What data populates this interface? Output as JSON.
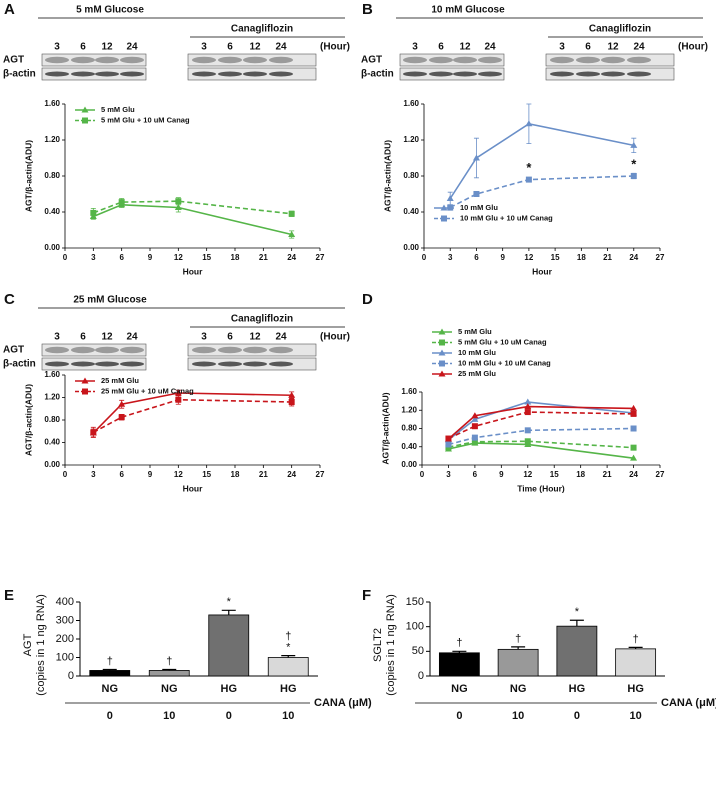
{
  "chart_data": [
    {
      "type": "line",
      "panel": "A",
      "title": "5 mM Glucose",
      "blot": {
        "lanes": [
          "3",
          "6",
          "12",
          "24"
        ],
        "treatment": "Canagliflozin",
        "unit": "(Hour)",
        "rows": [
          "AGT",
          "β-actin"
        ]
      },
      "xlabel": "Hour",
      "ylabel": "AGT/β-actin(ADU)",
      "legend": "upper left",
      "x": [
        3,
        6,
        12,
        24
      ],
      "xlim": [
        0,
        27
      ],
      "xticks": [
        0,
        3,
        6,
        9,
        12,
        15,
        18,
        21,
        24,
        27
      ],
      "ylim": [
        0,
        1.6
      ],
      "yticks": [
        {
          "value": 0,
          "label": "0.00"
        },
        {
          "value": 0.4,
          "label": "0.40"
        },
        {
          "value": 0.8,
          "label": "0.80"
        },
        {
          "value": 1.2,
          "label": "1.20"
        },
        {
          "value": 1.6,
          "label": "1.60"
        }
      ],
      "series": [
        {
          "name": "5 mM Glu",
          "color": "#55b548",
          "marker": "triangle",
          "dash": false,
          "values": [
            0.35,
            0.48,
            0.45,
            0.15
          ],
          "errors": [
            0.03,
            0.03,
            0.05,
            0.04
          ]
        },
        {
          "name": "5 mM Glu + 10 uM Canag",
          "color": "#55b548",
          "marker": "square",
          "dash": true,
          "values": [
            0.39,
            0.51,
            0.52,
            0.38
          ],
          "errors": [
            0.05,
            0.04,
            0.04,
            0.03
          ]
        }
      ]
    },
    {
      "type": "line",
      "panel": "B",
      "title": "10 mM Glucose",
      "blot": {
        "lanes": [
          "3",
          "6",
          "12",
          "24"
        ],
        "treatment": "Canagliflozin",
        "unit": "(Hour)",
        "rows": [
          "AGT",
          "β-actin"
        ]
      },
      "xlabel": "Hour",
      "ylabel": "AGT/β-actin(ADU)",
      "legend": "lower left",
      "x": [
        3,
        6,
        12,
        24
      ],
      "xlim": [
        0,
        27
      ],
      "xticks": [
        0,
        3,
        6,
        9,
        12,
        15,
        18,
        21,
        24,
        27
      ],
      "ylim": [
        0,
        1.6
      ],
      "yticks": [
        {
          "value": 0,
          "label": "0.00"
        },
        {
          "value": 0.4,
          "label": "0.40"
        },
        {
          "value": 0.8,
          "label": "0.80"
        },
        {
          "value": 1.2,
          "label": "1.20"
        },
        {
          "value": 1.6,
          "label": "1.60"
        }
      ],
      "series": [
        {
          "name": "10 mM Glu",
          "color": "#6a8fc8",
          "marker": "triangle",
          "dash": false,
          "values": [
            0.55,
            1.0,
            1.38,
            1.14
          ],
          "errors": [
            0.07,
            0.22,
            0.22,
            0.08
          ]
        },
        {
          "name": "10 mM Glu + 10 uM Canag",
          "color": "#6a8fc8",
          "marker": "square",
          "dash": true,
          "values": [
            0.45,
            0.6,
            0.76,
            0.8
          ],
          "errors": [
            0.03,
            0.02,
            0.02,
            0.03
          ]
        }
      ],
      "annotations": [
        {
          "text": "*",
          "x": 12,
          "y": 0.76
        },
        {
          "text": "*",
          "x": 24,
          "y": 0.8
        }
      ]
    },
    {
      "type": "line",
      "panel": "C",
      "title": "25 mM Glucose",
      "blot": {
        "lanes": [
          "3",
          "6",
          "12",
          "24"
        ],
        "treatment": "Canagliflozin",
        "unit": "(Hour)",
        "rows": [
          "AGT",
          "β-actin"
        ]
      },
      "xlabel": "Hour",
      "ylabel": "AGT/β-actin(ADU)",
      "legend": "upper left",
      "x": [
        3,
        6,
        12,
        24
      ],
      "xlim": [
        0,
        27
      ],
      "xticks": [
        0,
        3,
        6,
        9,
        12,
        15,
        18,
        21,
        24,
        27
      ],
      "ylim": [
        0,
        1.6
      ],
      "yticks": [
        {
          "value": 0,
          "label": "0.00"
        },
        {
          "value": 0.4,
          "label": "0.40"
        },
        {
          "value": 0.8,
          "label": "0.80"
        },
        {
          "value": 1.2,
          "label": "1.20"
        },
        {
          "value": 1.6,
          "label": "1.60"
        }
      ],
      "series": [
        {
          "name": "25 mM Glu",
          "color": "#c8151b",
          "marker": "triangle",
          "dash": false,
          "values": [
            0.57,
            1.08,
            1.28,
            1.24
          ],
          "errors": [
            0.07,
            0.07,
            0.05,
            0.06
          ]
        },
        {
          "name": "25 mM Glu + 10 uM Canag",
          "color": "#c8151b",
          "marker": "square",
          "dash": true,
          "values": [
            0.58,
            0.85,
            1.16,
            1.12
          ],
          "errors": [
            0.09,
            0.05,
            0.08,
            0.07
          ]
        }
      ]
    },
    {
      "type": "line",
      "panel": "D",
      "xlabel": "Time (Hour)",
      "ylabel": "AGT/β-actin(ADU)",
      "legend": "above",
      "x": [
        3,
        6,
        12,
        24
      ],
      "xlim": [
        0,
        27
      ],
      "xticks": [
        0,
        3,
        6,
        9,
        12,
        15,
        18,
        21,
        24,
        27
      ],
      "ylim": [
        0,
        1.6
      ],
      "yticks": [
        {
          "value": 0,
          "label": "0.00"
        },
        {
          "value": 0.4,
          "label": "0.40"
        },
        {
          "value": 0.8,
          "label": "0.80"
        },
        {
          "value": 1.2,
          "label": "1.20"
        },
        {
          "value": 1.6,
          "label": "1.60"
        }
      ],
      "series": [
        {
          "name": "5 mM Glu",
          "color": "#55b548",
          "marker": "triangle",
          "dash": false,
          "values": [
            0.35,
            0.48,
            0.45,
            0.15
          ]
        },
        {
          "name": "5 mM Glu + 10 uM Canag",
          "color": "#55b548",
          "marker": "square",
          "dash": true,
          "values": [
            0.39,
            0.51,
            0.52,
            0.38
          ]
        },
        {
          "name": "10 mM Glu",
          "color": "#6a8fc8",
          "marker": "triangle",
          "dash": false,
          "values": [
            0.55,
            1.0,
            1.38,
            1.14
          ]
        },
        {
          "name": "10 mM Glu + 10 uM Canag",
          "color": "#6a8fc8",
          "marker": "square",
          "dash": true,
          "values": [
            0.45,
            0.6,
            0.76,
            0.8
          ]
        },
        {
          "name": "25 mM Glu",
          "color": "#c8151b",
          "marker": "triangle",
          "dash": false,
          "values": [
            0.57,
            1.08,
            1.28,
            1.24
          ]
        },
        {
          "color": "#c8151b",
          "marker": "square",
          "dash": true,
          "values": [
            0.58,
            0.85,
            1.16,
            1.12
          ]
        }
      ]
    },
    {
      "type": "bar",
      "panel": "E",
      "ylabel": [
        "AGT",
        "(copies in 1 ng RNA)"
      ],
      "categories": [
        "NG",
        "NG",
        "HG",
        "HG"
      ],
      "doses": [
        "0",
        "10",
        "0",
        "10"
      ],
      "dose_label": "CANA (μM)",
      "values": [
        30,
        30,
        330,
        100
      ],
      "errors": [
        5,
        5,
        25,
        10
      ],
      "colors": [
        "#000000",
        "#999999",
        "#707070",
        "#d9d9d9"
      ],
      "significance": [
        [
          "†"
        ],
        [
          "†"
        ],
        [
          "*"
        ],
        [
          "*",
          "†"
        ]
      ],
      "ylim": [
        0,
        400
      ],
      "yticks": [
        0,
        100,
        200,
        300,
        400
      ]
    },
    {
      "type": "bar",
      "panel": "F",
      "ylabel": [
        "SGLT2",
        "(copies in 1 ng RNA)"
      ],
      "categories": [
        "NG",
        "NG",
        "HG",
        "HG"
      ],
      "doses": [
        "0",
        "10",
        "0",
        "10"
      ],
      "dose_label": "CANA (μM)",
      "values": [
        47,
        54,
        101,
        55
      ],
      "errors": [
        3,
        5,
        12,
        3
      ],
      "colors": [
        "#000000",
        "#999999",
        "#707070",
        "#d9d9d9"
      ],
      "significance": [
        [
          "†"
        ],
        [
          "†"
        ],
        [
          "*"
        ],
        [
          "†"
        ]
      ],
      "ylim": [
        0,
        150
      ],
      "yticks": [
        0,
        50,
        100,
        150
      ]
    }
  ]
}
